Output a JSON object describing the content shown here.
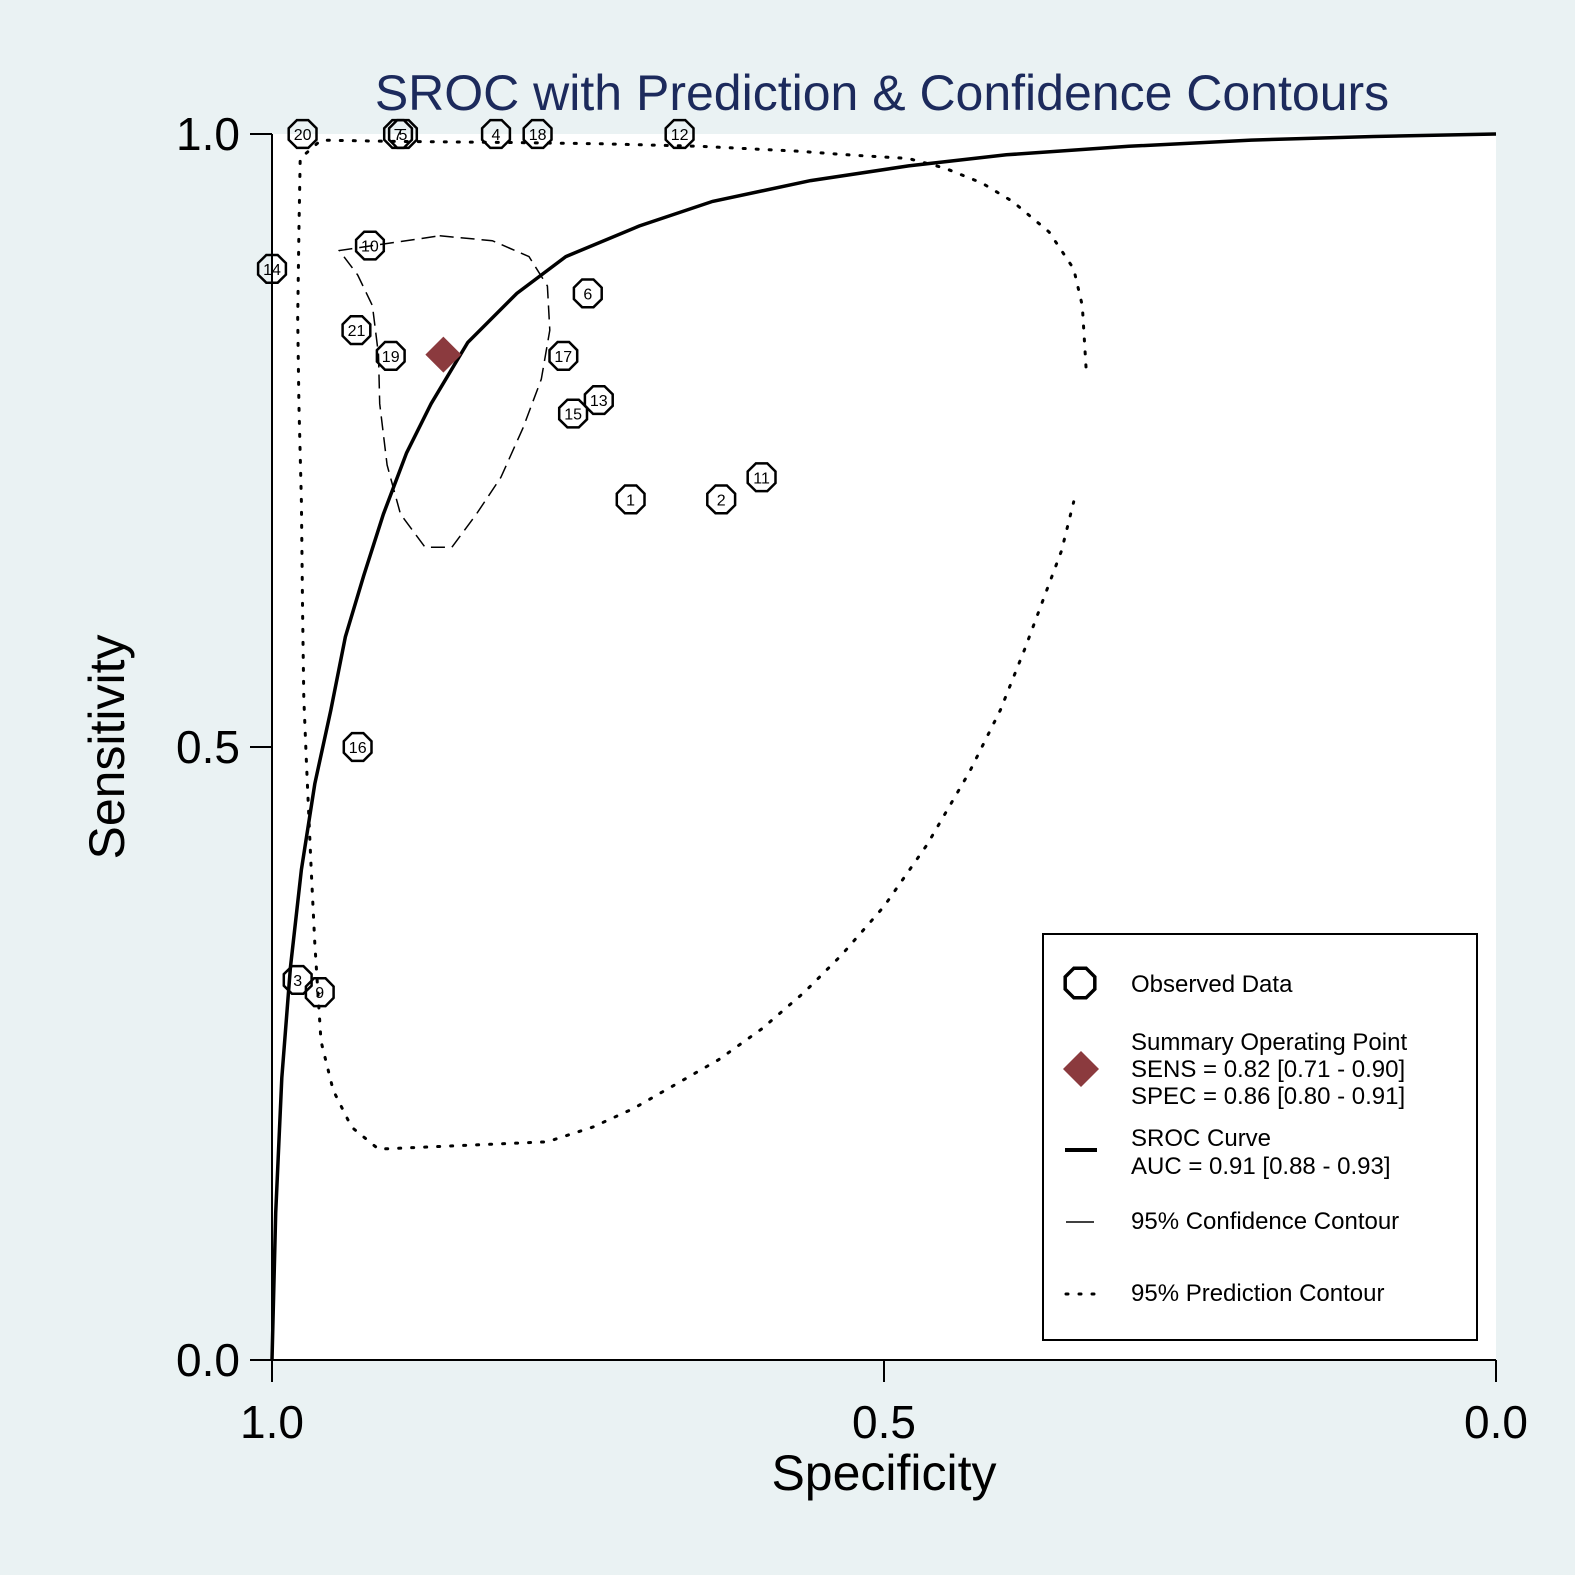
{
  "chart_data": {
    "type": "scatter",
    "title": "SROC with Prediction & Confidence Contours",
    "xlabel": "Specificity",
    "ylabel": "Sensitivity",
    "xlim": [
      1.0,
      0.0
    ],
    "ylim": [
      0.0,
      1.0
    ],
    "x_reversed": true,
    "x_ticks": [
      "1.0",
      "0.5",
      "0.0"
    ],
    "y_ticks": [
      "0.0",
      "0.5",
      "1.0"
    ],
    "grid": false,
    "legend_position": "bottom-right",
    "observed_data": [
      {
        "label": "1",
        "spec": 0.707,
        "sens": 0.702
      },
      {
        "label": "2",
        "spec": 0.633,
        "sens": 0.702
      },
      {
        "label": "3",
        "spec": 0.979,
        "sens": 0.31
      },
      {
        "label": "4",
        "spec": 0.817,
        "sens": 1.0
      },
      {
        "label": "5",
        "spec": 0.893,
        "sens": 1.0
      },
      {
        "label": "6",
        "spec": 0.742,
        "sens": 0.87
      },
      {
        "label": "7",
        "spec": 0.897,
        "sens": 1.0
      },
      {
        "label": "9",
        "spec": 0.961,
        "sens": 0.3
      },
      {
        "label": "10",
        "spec": 0.92,
        "sens": 0.909
      },
      {
        "label": "11",
        "spec": 0.6,
        "sens": 0.72
      },
      {
        "label": "12",
        "spec": 0.667,
        "sens": 1.0
      },
      {
        "label": "13",
        "spec": 0.733,
        "sens": 0.783
      },
      {
        "label": "14",
        "spec": 1.0,
        "sens": 0.89
      },
      {
        "label": "15",
        "spec": 0.754,
        "sens": 0.772
      },
      {
        "label": "16",
        "spec": 0.93,
        "sens": 0.5
      },
      {
        "label": "17",
        "spec": 0.762,
        "sens": 0.819
      },
      {
        "label": "18",
        "spec": 0.783,
        "sens": 1.0
      },
      {
        "label": "19",
        "spec": 0.903,
        "sens": 0.819
      },
      {
        "label": "20",
        "spec": 0.975,
        "sens": 1.0
      },
      {
        "label": "21",
        "spec": 0.931,
        "sens": 0.84
      }
    ],
    "summary_point": {
      "spec": 0.86,
      "sens": 0.82
    },
    "sroc_curve": [
      [
        1.0,
        0.0
      ],
      [
        0.997,
        0.12
      ],
      [
        0.992,
        0.23
      ],
      [
        0.985,
        0.32
      ],
      [
        0.976,
        0.4
      ],
      [
        0.965,
        0.47
      ],
      [
        0.952,
        0.53
      ],
      [
        0.94,
        0.59
      ],
      [
        0.925,
        0.64
      ],
      [
        0.909,
        0.69
      ],
      [
        0.89,
        0.74
      ],
      [
        0.87,
        0.78
      ],
      [
        0.84,
        0.83
      ],
      [
        0.8,
        0.87
      ],
      [
        0.76,
        0.9
      ],
      [
        0.7,
        0.925
      ],
      [
        0.64,
        0.945
      ],
      [
        0.56,
        0.962
      ],
      [
        0.48,
        0.974
      ],
      [
        0.4,
        0.983
      ],
      [
        0.3,
        0.99
      ],
      [
        0.2,
        0.995
      ],
      [
        0.1,
        0.998
      ],
      [
        0.0,
        1.0
      ]
    ],
    "confidence_contour": [
      [
        0.863,
        0.917
      ],
      [
        0.82,
        0.913
      ],
      [
        0.79,
        0.9
      ],
      [
        0.775,
        0.876
      ],
      [
        0.773,
        0.84
      ],
      [
        0.78,
        0.8
      ],
      [
        0.795,
        0.76
      ],
      [
        0.813,
        0.72
      ],
      [
        0.833,
        0.69
      ],
      [
        0.853,
        0.663
      ],
      [
        0.875,
        0.663
      ],
      [
        0.895,
        0.69
      ],
      [
        0.906,
        0.73
      ],
      [
        0.912,
        0.78
      ],
      [
        0.913,
        0.82
      ],
      [
        0.918,
        0.86
      ],
      [
        0.93,
        0.885
      ],
      [
        0.945,
        0.905
      ],
      [
        0.863,
        0.917
      ]
    ],
    "prediction_contour": [
      [
        0.335,
        0.81
      ],
      [
        0.338,
        0.86
      ],
      [
        0.345,
        0.89
      ],
      [
        0.365,
        0.92
      ],
      [
        0.395,
        0.945
      ],
      [
        0.42,
        0.96
      ],
      [
        0.45,
        0.972
      ],
      [
        0.48,
        0.98
      ],
      [
        0.53,
        0.983
      ],
      [
        0.57,
        0.986
      ],
      [
        0.65,
        0.99
      ],
      [
        0.73,
        0.992
      ],
      [
        0.8,
        0.993
      ],
      [
        0.9,
        0.994
      ],
      [
        0.96,
        0.995
      ],
      [
        0.977,
        0.98
      ],
      [
        0.978,
        0.92
      ],
      [
        0.979,
        0.85
      ],
      [
        0.978,
        0.78
      ],
      [
        0.976,
        0.7
      ],
      [
        0.975,
        0.61
      ],
      [
        0.974,
        0.54
      ],
      [
        0.972,
        0.49
      ],
      [
        0.968,
        0.4
      ],
      [
        0.965,
        0.34
      ],
      [
        0.96,
        0.26
      ],
      [
        0.95,
        0.22
      ],
      [
        0.935,
        0.19
      ],
      [
        0.913,
        0.172
      ],
      [
        0.775,
        0.178
      ],
      [
        0.738,
        0.19
      ],
      [
        0.705,
        0.205
      ],
      [
        0.67,
        0.225
      ],
      [
        0.635,
        0.245
      ],
      [
        0.6,
        0.27
      ],
      [
        0.565,
        0.3
      ],
      [
        0.535,
        0.33
      ],
      [
        0.5,
        0.37
      ],
      [
        0.465,
        0.42
      ],
      [
        0.43,
        0.48
      ],
      [
        0.405,
        0.53
      ],
      [
        0.385,
        0.58
      ],
      [
        0.37,
        0.62
      ],
      [
        0.355,
        0.66
      ],
      [
        0.345,
        0.7
      ]
    ]
  },
  "legend": {
    "observed": "Observed Data",
    "summary_title": "Summary Operating Point",
    "summary_sens": "SENS = 0.82 [0.71 - 0.90]",
    "summary_spec": "SPEC = 0.86 [0.80 - 0.91]",
    "sroc_title": "SROC Curve",
    "sroc_auc": "AUC = 0.91 [0.88 - 0.93]",
    "confidence": "95% Confidence Contour",
    "prediction": "95% Prediction Contour"
  },
  "colors": {
    "background": "#eaf2f3",
    "plot_area": "#ffffff",
    "title": "#1c2a5c",
    "summary_point": "#8b3a3e"
  }
}
